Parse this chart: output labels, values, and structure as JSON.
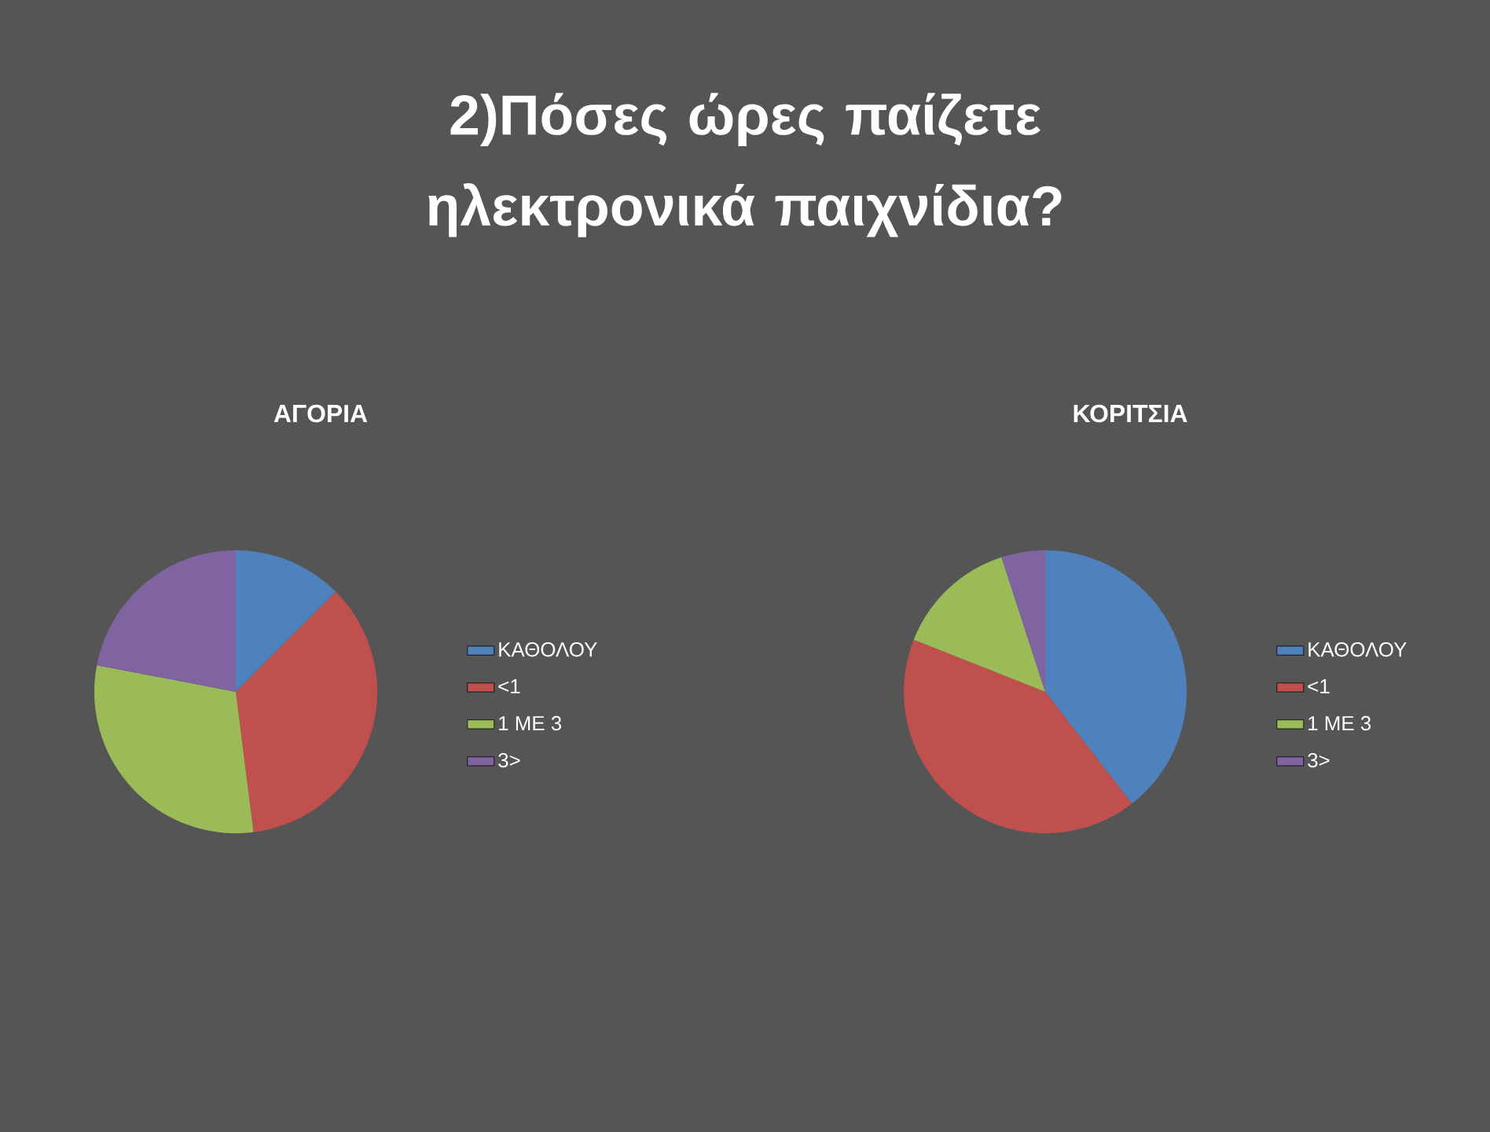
{
  "chart_data": [
    {
      "type": "other",
      "title": "2)Πόσες ώρες παίζετε ηλεκτρονικά παιχνίδια?"
    },
    {
      "type": "pie",
      "title": "ΑΓΟΡΙΑ",
      "categories": [
        "ΚΑΘΟΛΟΥ",
        "<1",
        "1 ΜΕ 3",
        "3>"
      ],
      "values": [
        12.5,
        35.5,
        30,
        22
      ],
      "colors": [
        "#4f81bd",
        "#c0504d",
        "#9bbb59",
        "#8064a2"
      ],
      "legend": "right"
    },
    {
      "type": "pie",
      "title": "ΚΟΡΙΤΣΙΑ",
      "categories": [
        "ΚΑΘΟΛΟΥ",
        "<1",
        "1 ΜΕ 3",
        "3>"
      ],
      "values": [
        39.5,
        41.5,
        14,
        5
      ],
      "colors": [
        "#4f81bd",
        "#c0504d",
        "#9bbb59",
        "#8064a2"
      ],
      "legend": "right"
    }
  ]
}
